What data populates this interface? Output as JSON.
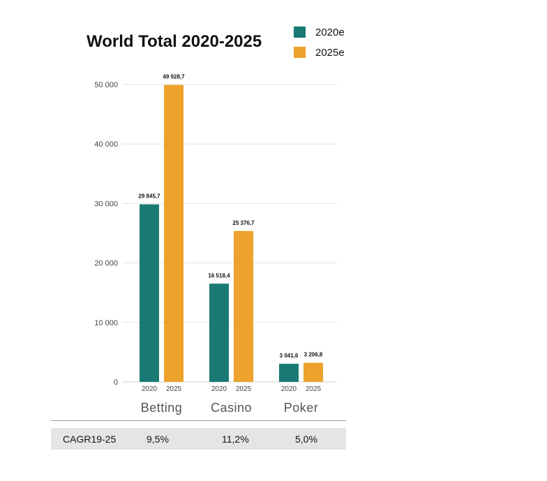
{
  "chart_data": {
    "type": "bar",
    "title": "World Total 2020-2025",
    "legend_position": "top-right",
    "grid": true,
    "ylim": [
      0,
      50000
    ],
    "yticks": [
      "0",
      "10 000",
      "20 000",
      "30 000",
      "40 000",
      "50 000"
    ],
    "categories": [
      "Betting",
      "Casino",
      "Poker"
    ],
    "sublabels": [
      "2020",
      "2025"
    ],
    "series": [
      {
        "name": "2020e",
        "color": "#197a74",
        "values": [
          29845.7,
          16518.4,
          3041.6
        ],
        "labels": [
          "29 845,7",
          "16 518,4",
          "3 041,6"
        ]
      },
      {
        "name": "2025e",
        "color": "#eca22c",
        "values": [
          49928.7,
          25376.7,
          3206.8
        ],
        "labels": [
          "49 928,7",
          "25 376,7",
          "3 206,8"
        ]
      }
    ]
  },
  "cagr": {
    "label": "CAGR19-25",
    "values": [
      "9,5%",
      "11,2%",
      "5,0%"
    ]
  }
}
